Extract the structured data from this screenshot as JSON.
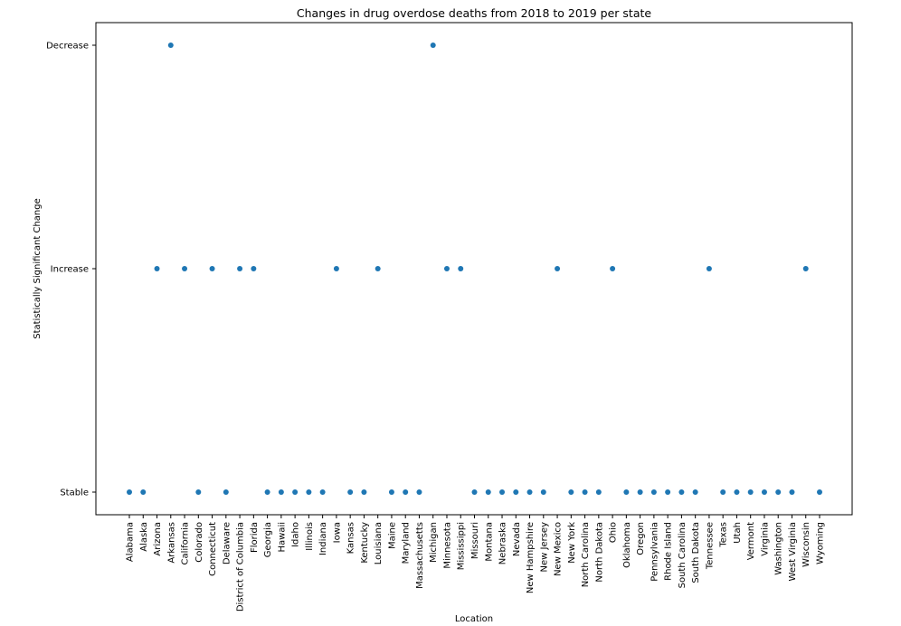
{
  "chart_data": {
    "type": "scatter",
    "title": "Changes in drug overdose deaths from 2018 to 2019 per state",
    "xlabel": "Location",
    "ylabel": "Statistically Significant Change",
    "y_categories": [
      "Stable",
      "Increase",
      "Decrease"
    ],
    "grid": false,
    "legend": "none",
    "marker_color": "#1f77b4",
    "points": [
      {
        "x": "Alabama",
        "y": "Stable"
      },
      {
        "x": "Alaska",
        "y": "Stable"
      },
      {
        "x": "Arizona",
        "y": "Increase"
      },
      {
        "x": "Arkansas",
        "y": "Decrease"
      },
      {
        "x": "California",
        "y": "Increase"
      },
      {
        "x": "Colorado",
        "y": "Stable"
      },
      {
        "x": "Connecticut",
        "y": "Increase"
      },
      {
        "x": "Delaware",
        "y": "Stable"
      },
      {
        "x": "District of Columbia",
        "y": "Increase"
      },
      {
        "x": "Florida",
        "y": "Increase"
      },
      {
        "x": "Georgia",
        "y": "Stable"
      },
      {
        "x": "Hawaii",
        "y": "Stable"
      },
      {
        "x": "Idaho",
        "y": "Stable"
      },
      {
        "x": "Illinois",
        "y": "Stable"
      },
      {
        "x": "Indiana",
        "y": "Stable"
      },
      {
        "x": "Iowa",
        "y": "Increase"
      },
      {
        "x": "Kansas",
        "y": "Stable"
      },
      {
        "x": "Kentucky",
        "y": "Stable"
      },
      {
        "x": "Louisiana",
        "y": "Increase"
      },
      {
        "x": "Maine",
        "y": "Stable"
      },
      {
        "x": "Maryland",
        "y": "Stable"
      },
      {
        "x": "Massachusetts",
        "y": "Stable"
      },
      {
        "x": "Michigan",
        "y": "Decrease"
      },
      {
        "x": "Minnesota",
        "y": "Increase"
      },
      {
        "x": "Mississippi",
        "y": "Increase"
      },
      {
        "x": "Missouri",
        "y": "Stable"
      },
      {
        "x": "Montana",
        "y": "Stable"
      },
      {
        "x": "Nebraska",
        "y": "Stable"
      },
      {
        "x": "Nevada",
        "y": "Stable"
      },
      {
        "x": "New Hampshire",
        "y": "Stable"
      },
      {
        "x": "New Jersey",
        "y": "Stable"
      },
      {
        "x": "New Mexico",
        "y": "Increase"
      },
      {
        "x": "New York",
        "y": "Stable"
      },
      {
        "x": "North Carolina",
        "y": "Stable"
      },
      {
        "x": "North Dakota",
        "y": "Stable"
      },
      {
        "x": "Ohio",
        "y": "Increase"
      },
      {
        "x": "Oklahoma",
        "y": "Stable"
      },
      {
        "x": "Oregon",
        "y": "Stable"
      },
      {
        "x": "Pennsylvania",
        "y": "Stable"
      },
      {
        "x": "Rhode Island",
        "y": "Stable"
      },
      {
        "x": "South Carolina",
        "y": "Stable"
      },
      {
        "x": "South Dakota",
        "y": "Stable"
      },
      {
        "x": "Tennessee",
        "y": "Increase"
      },
      {
        "x": "Texas",
        "y": "Stable"
      },
      {
        "x": "Utah",
        "y": "Stable"
      },
      {
        "x": "Vermont",
        "y": "Stable"
      },
      {
        "x": "Virginia",
        "y": "Stable"
      },
      {
        "x": "Washington",
        "y": "Stable"
      },
      {
        "x": "West Virginia",
        "y": "Stable"
      },
      {
        "x": "Wisconsin",
        "y": "Increase"
      },
      {
        "x": "Wyoming",
        "y": "Stable"
      }
    ]
  }
}
